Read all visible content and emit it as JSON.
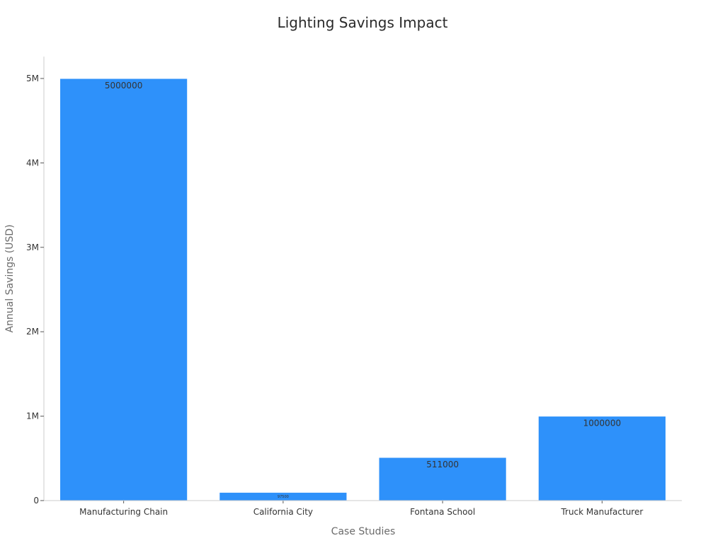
{
  "chart_data": {
    "type": "bar",
    "title": "Lighting Savings Impact",
    "xlabel": "Case Studies",
    "ylabel": "Annual Savings (USD)",
    "categories": [
      "Manufacturing Chain",
      "California City",
      "Fontana School",
      "Truck Manufacturer"
    ],
    "values": [
      5000000,
      97500,
      511000,
      1000000
    ],
    "data_labels": [
      "5000000",
      "97500",
      "511000",
      "1000000"
    ],
    "ylim": [
      0,
      5000000
    ],
    "yticks": [
      0,
      1000000,
      2000000,
      3000000,
      4000000,
      5000000
    ],
    "ytick_labels": [
      "0",
      "1M",
      "2M",
      "3M",
      "4M",
      "5M"
    ],
    "grid": false,
    "legend": "none",
    "bar_color": "#2e91fa",
    "axis_color": "#cccccc"
  }
}
